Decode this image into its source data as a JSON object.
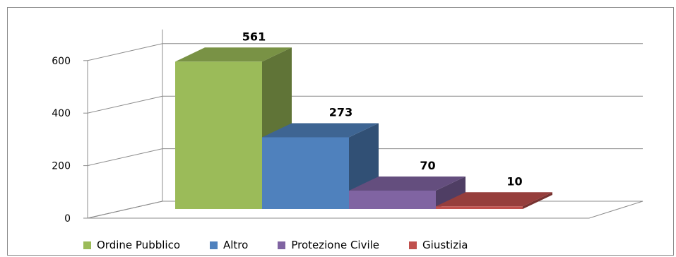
{
  "chart_data": {
    "type": "bar",
    "style": "3d-column",
    "categories": [
      "Ordine Pubblico",
      "Altro",
      "Protezione Civile",
      "Giustizia"
    ],
    "values": [
      561,
      273,
      70,
      10
    ],
    "data_labels": [
      "561",
      "273",
      "70",
      "10"
    ],
    "colors": [
      "#9bbb59",
      "#4f81bd",
      "#8064a2",
      "#c0504d"
    ],
    "ylim": [
      0,
      600
    ],
    "yticks": [
      0,
      200,
      400,
      600
    ],
    "ytick_labels": [
      "0",
      "200",
      "400",
      "600"
    ],
    "grid": true,
    "legend_position": "bottom",
    "title": "",
    "xlabel": "",
    "ylabel": ""
  }
}
